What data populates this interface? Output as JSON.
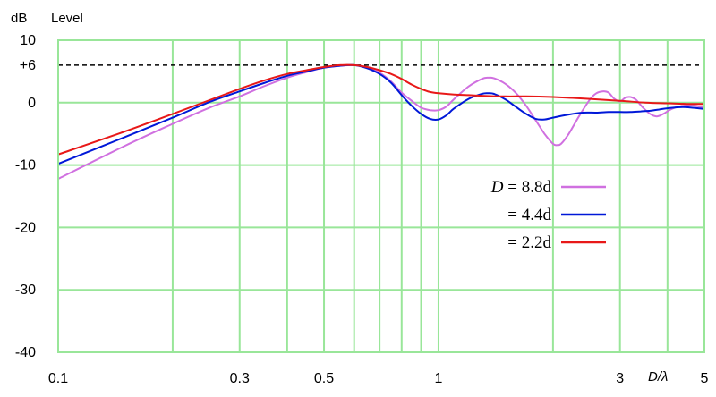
{
  "chart_data": {
    "type": "line",
    "y_unit": "dB",
    "y_title": "Level",
    "x_title": "D/λ",
    "x_scale": "log",
    "xlim": [
      0.1,
      5
    ],
    "ylim": [
      -40,
      10
    ],
    "grid": true,
    "x_ticks": [
      {
        "value": 0.1,
        "label": "0.1"
      },
      {
        "value": 0.3,
        "label": "0.3"
      },
      {
        "value": 0.5,
        "label": "0.5"
      },
      {
        "value": 1,
        "label": "1"
      },
      {
        "value": 3,
        "label": "3"
      },
      {
        "value": 5,
        "label": "5"
      }
    ],
    "y_ticks": [
      {
        "value": 10,
        "label": "10"
      },
      {
        "value": 6,
        "label": "+6"
      },
      {
        "value": 0,
        "label": "0"
      },
      {
        "value": -10,
        "label": "-10"
      },
      {
        "value": -20,
        "label": "-20"
      },
      {
        "value": -30,
        "label": "-30"
      },
      {
        "value": -40,
        "label": "-40"
      }
    ],
    "reference_line": {
      "y": 6,
      "style": "dashed",
      "color": "#000000"
    },
    "grid_color": "#99e699",
    "legend_position": "center-right",
    "series": [
      {
        "legend_var": "D",
        "legend_rest": " = 8.8d",
        "color": "#d070e0",
        "points": [
          [
            0.1,
            -12.2
          ],
          [
            0.15,
            -6.9
          ],
          [
            0.2,
            -3.4
          ],
          [
            0.25,
            -0.8
          ],
          [
            0.3,
            1.0
          ],
          [
            0.35,
            2.7
          ],
          [
            0.4,
            4.0
          ],
          [
            0.45,
            4.9
          ],
          [
            0.5,
            5.6
          ],
          [
            0.55,
            5.9
          ],
          [
            0.6,
            6.0
          ],
          [
            0.65,
            5.6
          ],
          [
            0.7,
            4.8
          ],
          [
            0.75,
            3.4
          ],
          [
            0.8,
            1.6
          ],
          [
            0.85,
            0.3
          ],
          [
            0.9,
            -0.8
          ],
          [
            0.95,
            -1.2
          ],
          [
            1.0,
            -1.2
          ],
          [
            1.05,
            -0.6
          ],
          [
            1.1,
            0.6
          ],
          [
            1.2,
            2.6
          ],
          [
            1.3,
            3.8
          ],
          [
            1.35,
            4.0
          ],
          [
            1.4,
            3.9
          ],
          [
            1.5,
            3.0
          ],
          [
            1.6,
            1.5
          ],
          [
            1.7,
            -0.5
          ],
          [
            1.8,
            -2.8
          ],
          [
            1.9,
            -5.0
          ],
          [
            2.0,
            -6.6
          ],
          [
            2.05,
            -6.8
          ],
          [
            2.1,
            -6.6
          ],
          [
            2.2,
            -5.0
          ],
          [
            2.35,
            -2.0
          ],
          [
            2.5,
            0.5
          ],
          [
            2.6,
            1.5
          ],
          [
            2.7,
            1.8
          ],
          [
            2.8,
            1.6
          ],
          [
            2.9,
            0.6
          ],
          [
            3.0,
            0.2
          ],
          [
            3.1,
            0.8
          ],
          [
            3.2,
            0.9
          ],
          [
            3.3,
            0.5
          ],
          [
            3.45,
            -0.8
          ],
          [
            3.6,
            -1.8
          ],
          [
            3.75,
            -2.2
          ],
          [
            3.9,
            -1.8
          ],
          [
            4.1,
            -1.0
          ],
          [
            4.3,
            -0.6
          ],
          [
            4.6,
            -0.4
          ],
          [
            5.0,
            -0.8
          ]
        ]
      },
      {
        "legend_var": "",
        "legend_rest": "= 4.4d",
        "color": "#0018d8",
        "points": [
          [
            0.1,
            -9.8
          ],
          [
            0.15,
            -5.5
          ],
          [
            0.2,
            -2.4
          ],
          [
            0.25,
            0.1
          ],
          [
            0.3,
            1.8
          ],
          [
            0.35,
            3.2
          ],
          [
            0.4,
            4.3
          ],
          [
            0.45,
            5.0
          ],
          [
            0.5,
            5.6
          ],
          [
            0.55,
            5.9
          ],
          [
            0.6,
            6.0
          ],
          [
            0.65,
            5.5
          ],
          [
            0.7,
            4.6
          ],
          [
            0.75,
            3.2
          ],
          [
            0.8,
            1.2
          ],
          [
            0.85,
            -0.5
          ],
          [
            0.9,
            -1.8
          ],
          [
            0.95,
            -2.6
          ],
          [
            1.0,
            -2.7
          ],
          [
            1.05,
            -2.0
          ],
          [
            1.1,
            -0.9
          ],
          [
            1.2,
            0.6
          ],
          [
            1.3,
            1.4
          ],
          [
            1.35,
            1.5
          ],
          [
            1.4,
            1.4
          ],
          [
            1.5,
            0.5
          ],
          [
            1.6,
            -0.7
          ],
          [
            1.7,
            -1.8
          ],
          [
            1.8,
            -2.6
          ],
          [
            1.9,
            -2.7
          ],
          [
            2.0,
            -2.4
          ],
          [
            2.2,
            -1.9
          ],
          [
            2.4,
            -1.6
          ],
          [
            2.6,
            -1.6
          ],
          [
            2.8,
            -1.5
          ],
          [
            3.0,
            -1.5
          ],
          [
            3.2,
            -1.5
          ],
          [
            3.4,
            -1.4
          ],
          [
            3.6,
            -1.3
          ],
          [
            3.8,
            -1.1
          ],
          [
            4.0,
            -0.9
          ],
          [
            4.4,
            -0.7
          ],
          [
            5.0,
            -1.0
          ]
        ]
      },
      {
        "legend_var": "",
        "legend_rest": "= 2.2d",
        "color": "#e81818",
        "points": [
          [
            0.1,
            -8.3
          ],
          [
            0.15,
            -4.6
          ],
          [
            0.2,
            -1.8
          ],
          [
            0.25,
            0.4
          ],
          [
            0.3,
            2.2
          ],
          [
            0.35,
            3.6
          ],
          [
            0.4,
            4.6
          ],
          [
            0.45,
            5.2
          ],
          [
            0.5,
            5.7
          ],
          [
            0.55,
            6.0
          ],
          [
            0.6,
            6.0
          ],
          [
            0.65,
            5.7
          ],
          [
            0.7,
            5.2
          ],
          [
            0.75,
            4.6
          ],
          [
            0.8,
            3.8
          ],
          [
            0.85,
            2.9
          ],
          [
            0.9,
            2.2
          ],
          [
            0.95,
            1.7
          ],
          [
            1.0,
            1.5
          ],
          [
            1.1,
            1.3
          ],
          [
            1.2,
            1.2
          ],
          [
            1.3,
            1.1
          ],
          [
            1.5,
            1.0
          ],
          [
            1.7,
            1.0
          ],
          [
            2.0,
            0.9
          ],
          [
            2.5,
            0.6
          ],
          [
            3.0,
            0.3
          ],
          [
            3.5,
            0.0
          ],
          [
            4.0,
            -0.1
          ],
          [
            4.5,
            -0.2
          ],
          [
            5.0,
            -0.2
          ]
        ]
      }
    ]
  }
}
